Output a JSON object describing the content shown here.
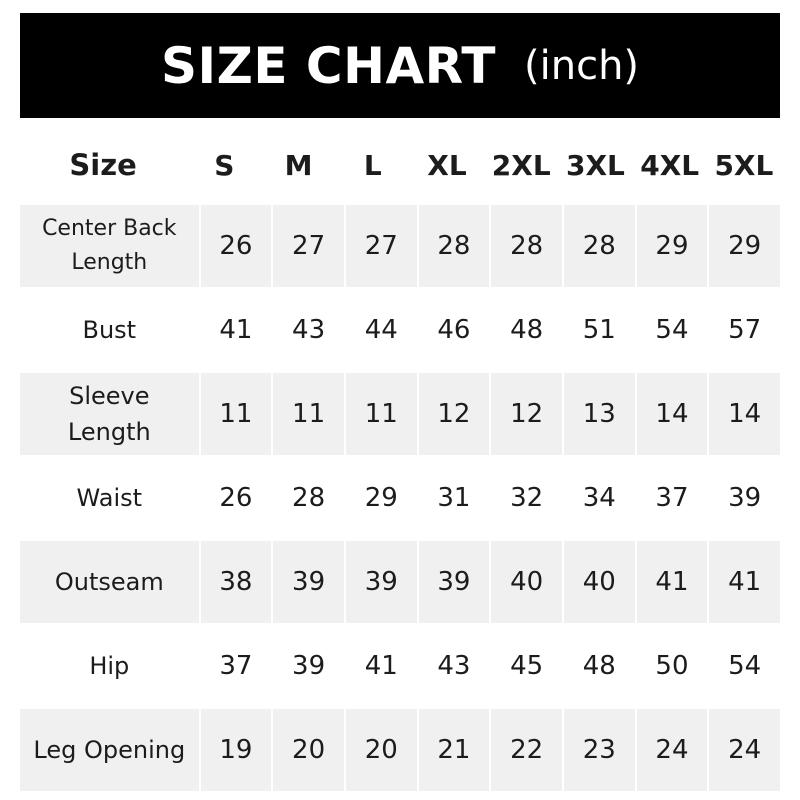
{
  "header": {
    "title": "SIZE CHART",
    "unit": "(inch)",
    "background": "#000000",
    "text_color": "#ffffff"
  },
  "chart_data": {
    "type": "table",
    "title": "SIZE CHART (inch)",
    "columns": [
      "Size",
      "S",
      "M",
      "L",
      "XL",
      "2XL",
      "3XL",
      "4XL",
      "5XL"
    ],
    "rows": [
      {
        "label": "Center Back Length",
        "values": [
          26,
          27,
          27,
          28,
          28,
          28,
          29,
          29
        ]
      },
      {
        "label": "Bust",
        "values": [
          41,
          43,
          44,
          46,
          48,
          51,
          54,
          57
        ]
      },
      {
        "label": "Sleeve Length",
        "values": [
          11,
          11,
          11,
          12,
          12,
          13,
          14,
          14
        ]
      },
      {
        "label": "Waist",
        "values": [
          26,
          28,
          29,
          31,
          32,
          34,
          37,
          39
        ]
      },
      {
        "label": "Outseam",
        "values": [
          38,
          39,
          39,
          39,
          40,
          40,
          41,
          41
        ]
      },
      {
        "label": "Hip",
        "values": [
          37,
          39,
          41,
          43,
          45,
          48,
          50,
          54
        ]
      },
      {
        "label": "Leg Opening",
        "values": [
          19,
          20,
          20,
          21,
          22,
          23,
          24,
          24
        ]
      }
    ],
    "row_stripe_color": "#f0f0f0"
  }
}
